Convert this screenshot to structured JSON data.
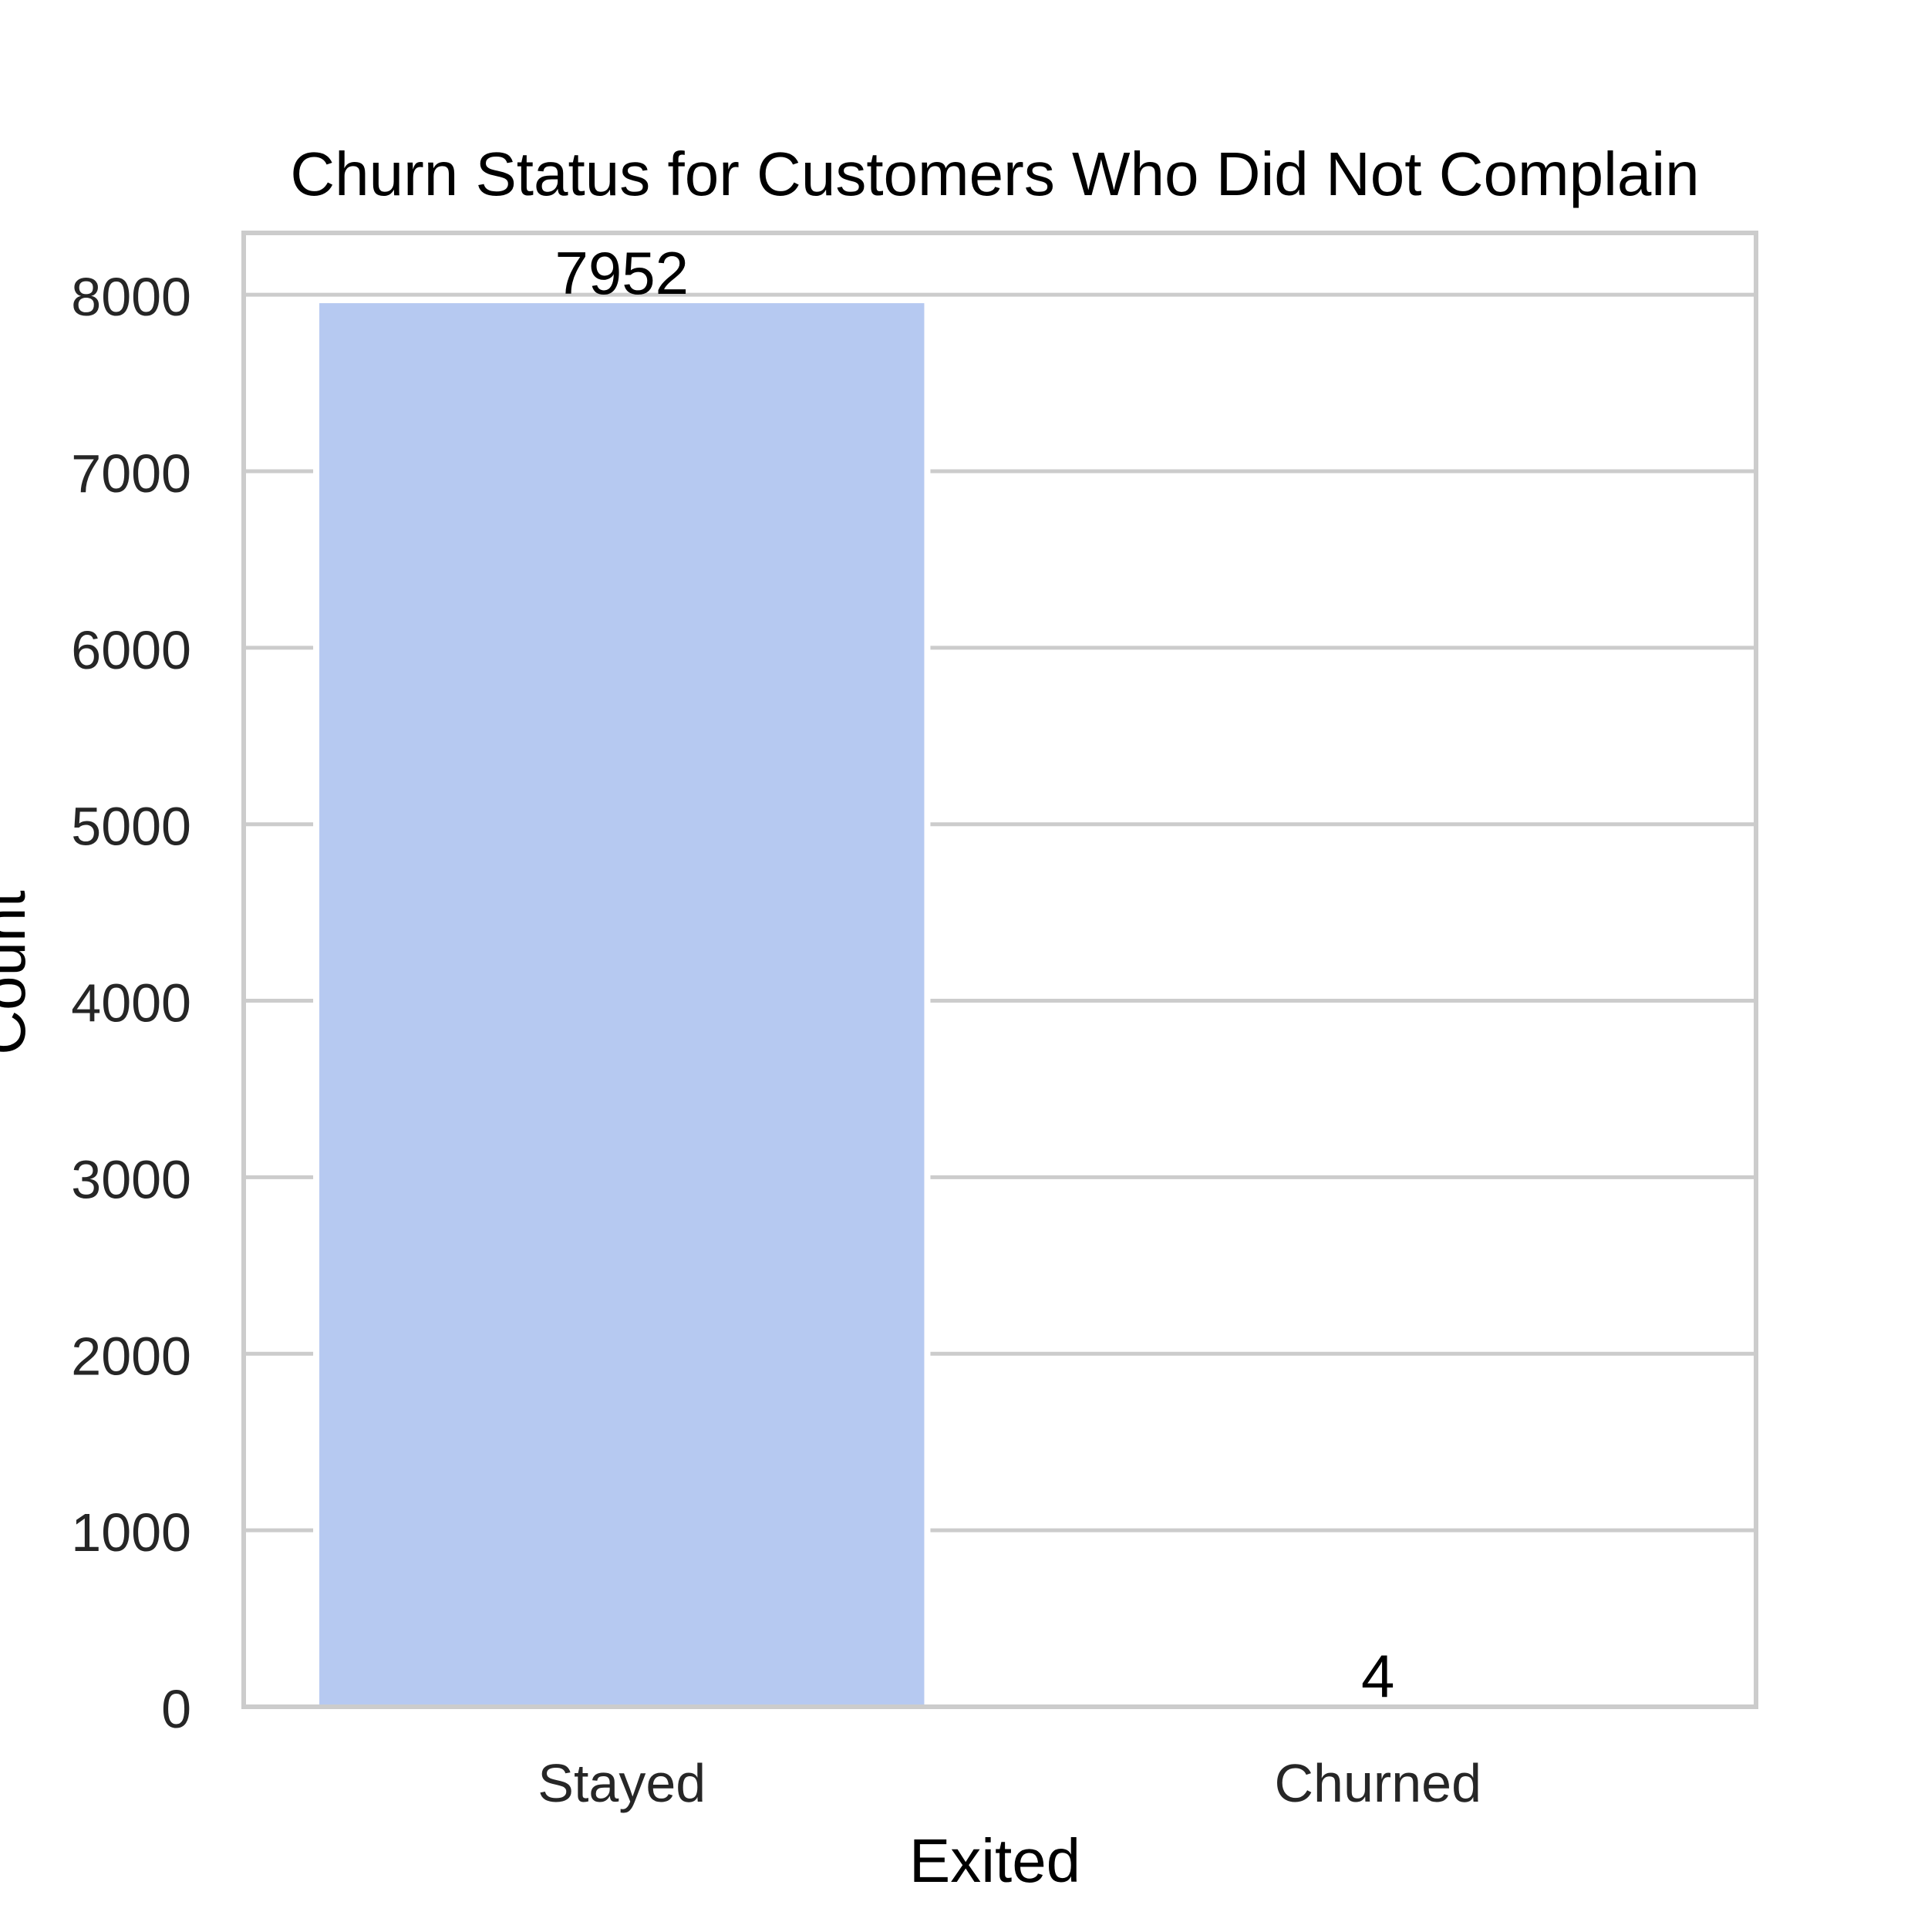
{
  "chart_data": {
    "type": "bar",
    "title": "Churn Status for Customers Who Did Not Complain",
    "xlabel": "Exited",
    "ylabel": "Count",
    "categories": [
      "Stayed",
      "Churned"
    ],
    "values": [
      7952,
      4
    ],
    "data_labels": [
      "7952",
      "4"
    ],
    "ylim": [
      0,
      8350
    ],
    "yticks": [
      0,
      1000,
      2000,
      3000,
      4000,
      5000,
      6000,
      7000,
      8000
    ],
    "ytick_labels": [
      "0",
      "1000",
      "2000",
      "3000",
      "4000",
      "5000",
      "6000",
      "7000",
      "8000"
    ],
    "grid": true,
    "legend": "none",
    "colors": {
      "bars": [
        "#b6c9f1",
        "#e9cec4"
      ],
      "grid": "#cccccc",
      "frame": "#cccccc",
      "text": "#262626",
      "data_label": "#000000"
    }
  }
}
